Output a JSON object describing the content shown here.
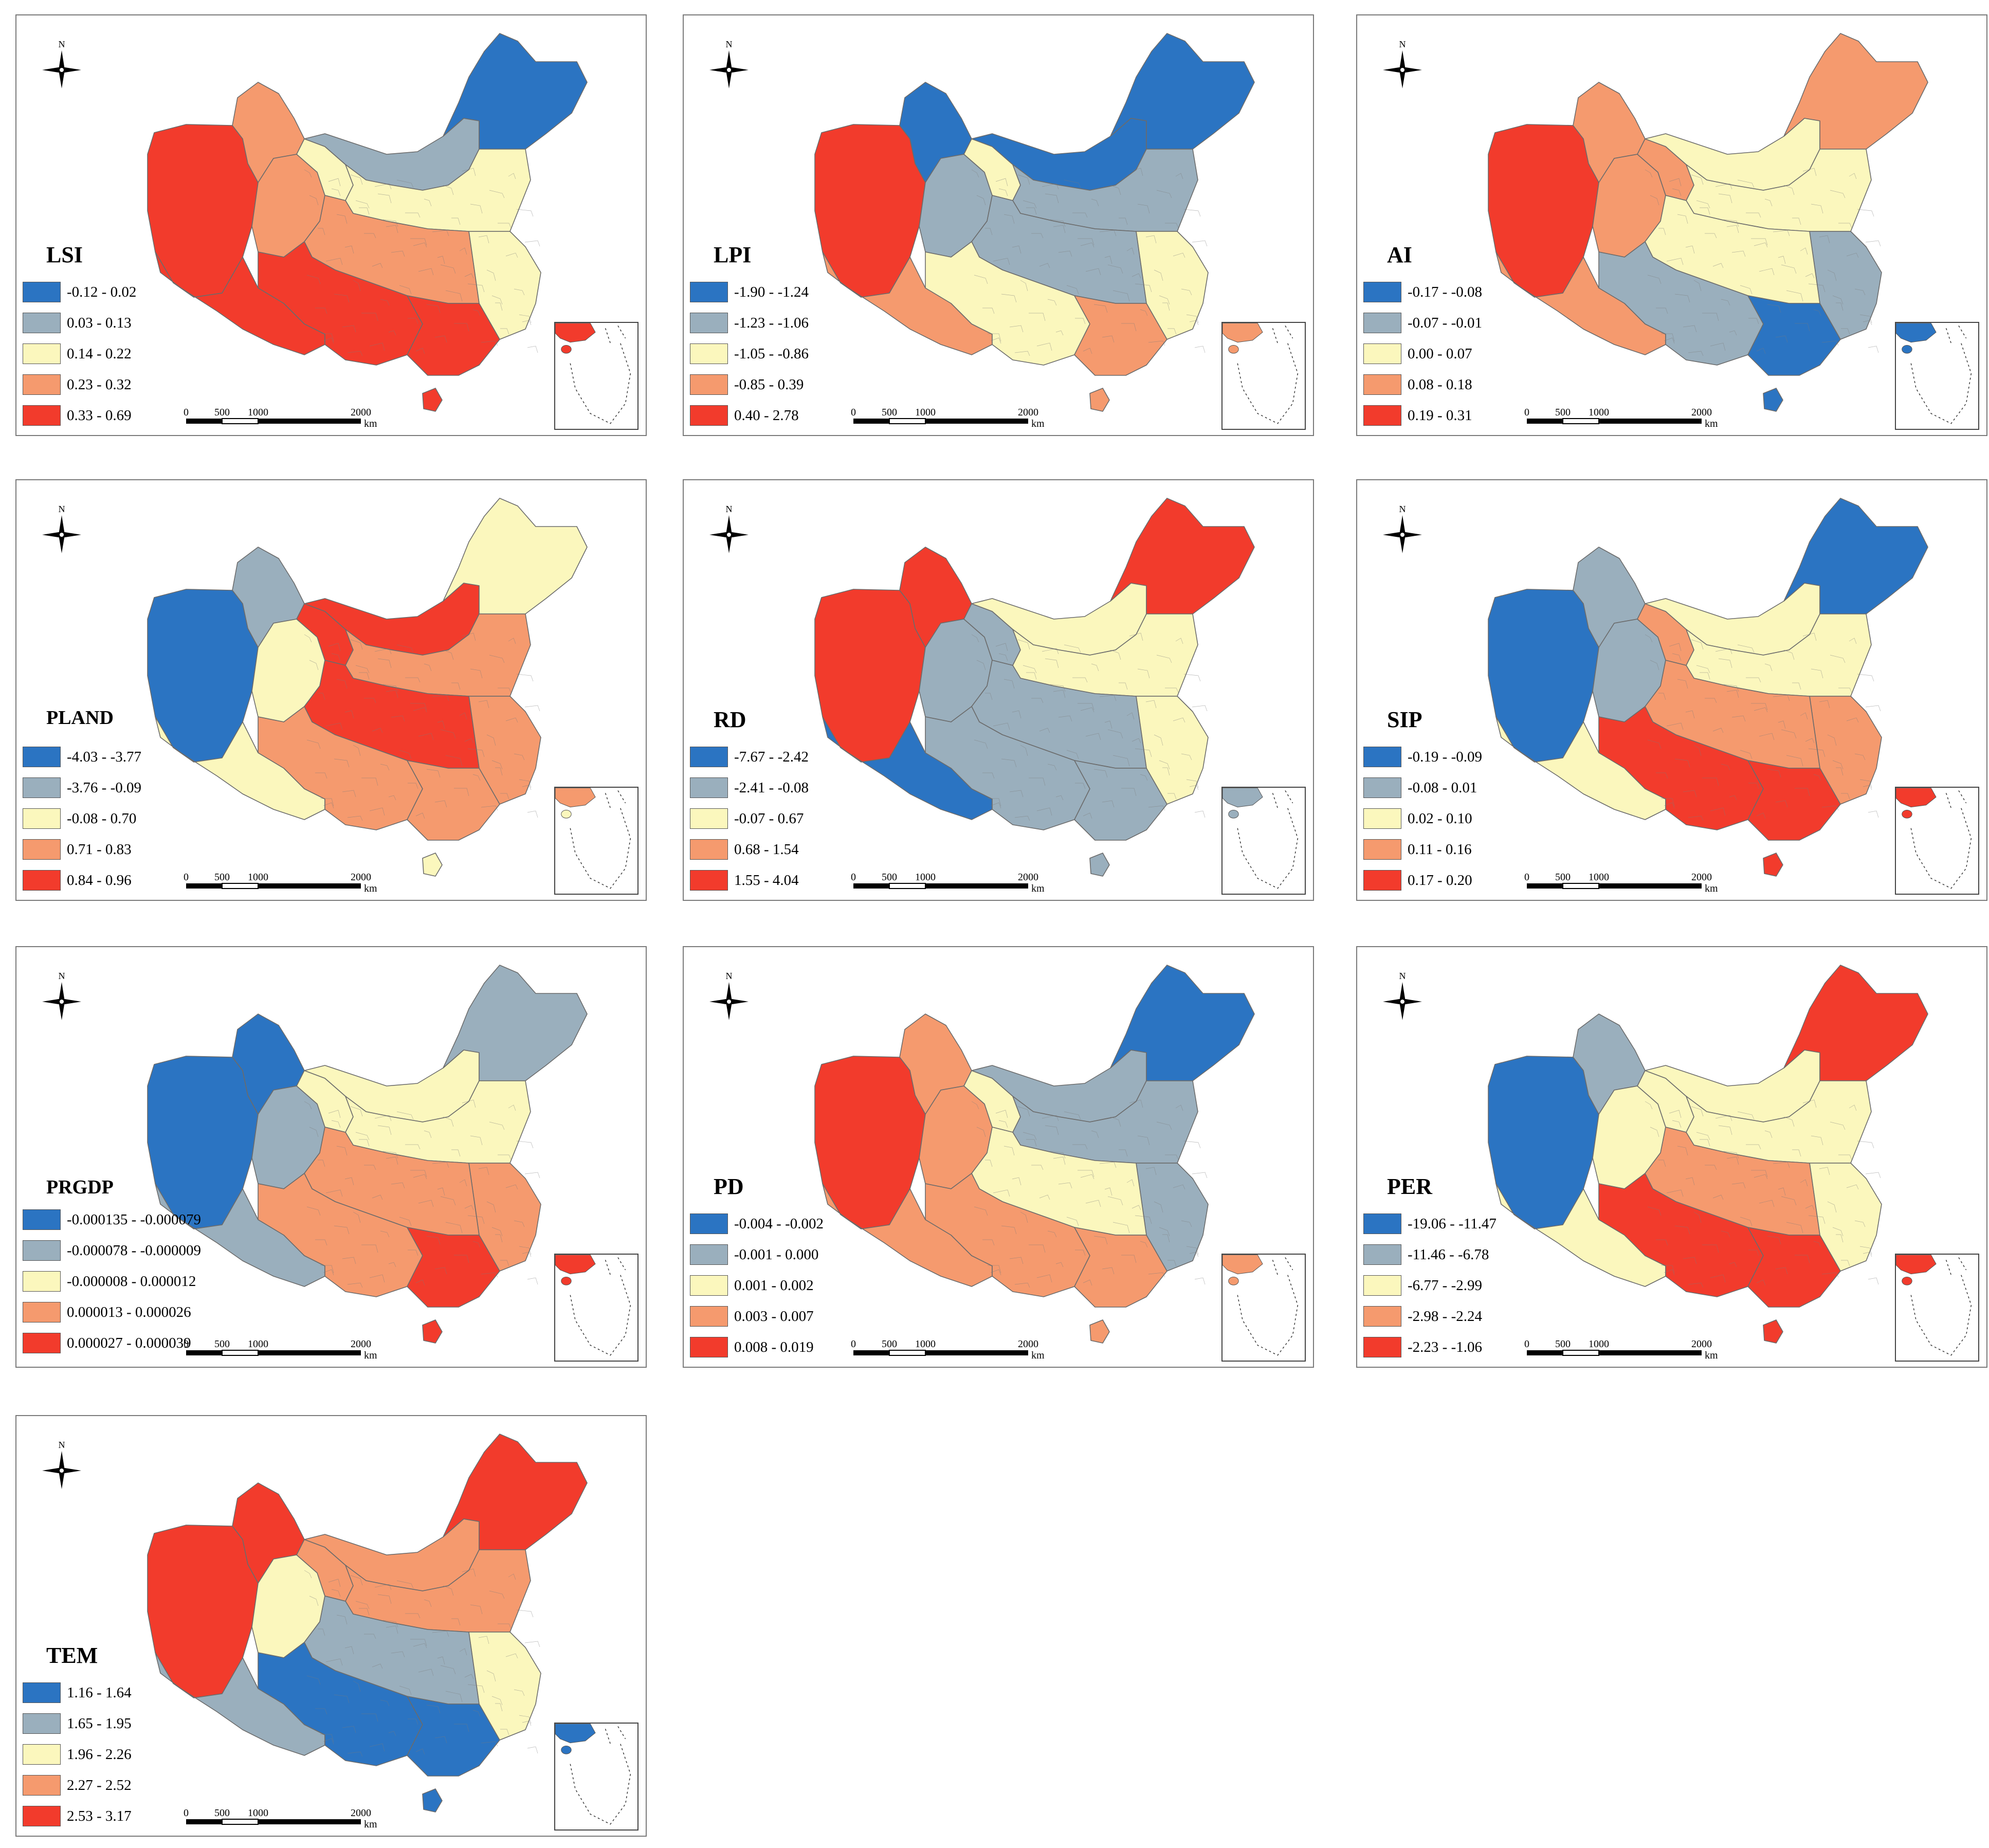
{
  "colors": {
    "class1": "#2b74c2",
    "class2": "#9aafbd",
    "class3": "#fbf7bd",
    "class4": "#f59a6e",
    "class5": "#f23b2c",
    "boundary": "#6b6b6b"
  },
  "compass": {
    "label": "N"
  },
  "scale_bar": {
    "ticks": [
      "0",
      "500",
      "1000",
      "2000"
    ],
    "unit": "km"
  },
  "maps": [
    {
      "title": "LSI",
      "legend": [
        "-0.12 - 0.02",
        "0.03 - 0.13",
        "0.14 - 0.22",
        "0.23 - 0.32",
        "0.33 - 0.69"
      ],
      "zones": {
        "xw": 5,
        "tibet": 5,
        "qinghai": 4,
        "gansu": 3,
        "nwgansu": 4,
        "inner_mongolia": 2,
        "northeast": 1,
        "north_china": 3,
        "central": 4,
        "southwest": 5,
        "south": 5,
        "east": 3,
        "hainan": 5
      }
    },
    {
      "title": "LPI",
      "legend": [
        "-1.90 - -1.24",
        "-1.23 - -1.06",
        "-1.05 - -0.86",
        "-0.85 - 0.39",
        "0.40 - 2.78"
      ],
      "zones": {
        "xw": 5,
        "tibet": 4,
        "qinghai": 2,
        "gansu": 3,
        "nwgansu": 1,
        "inner_mongolia": 1,
        "northeast": 1,
        "north_china": 2,
        "central": 2,
        "southwest": 3,
        "south": 4,
        "east": 3,
        "hainan": 4
      }
    },
    {
      "title": "AI",
      "legend": [
        "-0.17 - -0.08",
        "-0.07 - -0.01",
        "0.00 - 0.07",
        "0.08 - 0.18",
        "0.19 - 0.31"
      ],
      "zones": {
        "xw": 5,
        "tibet": 4,
        "qinghai": 4,
        "gansu": 4,
        "nwgansu": 4,
        "inner_mongolia": 3,
        "northeast": 4,
        "north_china": 3,
        "central": 3,
        "southwest": 2,
        "south": 1,
        "east": 2,
        "hainan": 1
      }
    },
    {
      "title": "PLAND",
      "legend": [
        "-4.03 - -3.77",
        "-3.76 - -0.09",
        "-0.08 - 0.70",
        "0.71 - 0.83",
        "0.84 - 0.96"
      ],
      "zones": {
        "xw": 1,
        "tibet": 3,
        "qinghai": 3,
        "gansu": 5,
        "nwgansu": 2,
        "inner_mongolia": 5,
        "northeast": 3,
        "north_china": 4,
        "central": 5,
        "southwest": 4,
        "south": 4,
        "east": 4,
        "hainan": 3
      }
    },
    {
      "title": "RD",
      "legend": [
        "-7.67 - -2.42",
        "-2.41 - -0.08",
        "-0.07 - 0.67",
        "0.68 - 1.54",
        "1.55 - 4.04"
      ],
      "zones": {
        "xw": 5,
        "tibet": 1,
        "qinghai": 2,
        "gansu": 2,
        "nwgansu": 5,
        "inner_mongolia": 3,
        "northeast": 5,
        "north_china": 3,
        "central": 2,
        "southwest": 2,
        "south": 2,
        "east": 3,
        "hainan": 2
      }
    },
    {
      "title": "SIP",
      "legend": [
        "-0.19 - -0.09",
        "-0.08 - 0.01",
        "0.02 - 0.10",
        "0.11 - 0.16",
        "0.17 - 0.20"
      ],
      "zones": {
        "xw": 1,
        "tibet": 3,
        "qinghai": 2,
        "gansu": 4,
        "nwgansu": 2,
        "inner_mongolia": 3,
        "northeast": 1,
        "north_china": 3,
        "central": 4,
        "southwest": 5,
        "south": 5,
        "east": 4,
        "hainan": 5
      }
    },
    {
      "title": "PRGDP",
      "legend": [
        "-0.000135 - -0.000079",
        "-0.000078 - -0.000009",
        "-0.000008 - 0.000012",
        "0.000013 - 0.000026",
        "0.000027 - 0.000039"
      ],
      "zones": {
        "xw": 1,
        "tibet": 2,
        "qinghai": 2,
        "gansu": 3,
        "nwgansu": 1,
        "inner_mongolia": 3,
        "northeast": 2,
        "north_china": 3,
        "central": 4,
        "southwest": 4,
        "south": 5,
        "east": 4,
        "hainan": 5
      }
    },
    {
      "title": "PD",
      "legend": [
        "-0.004 - -0.002",
        "-0.001 - 0.000",
        "0.001 - 0.002",
        "0.003 - 0.007",
        "0.008 - 0.019"
      ],
      "zones": {
        "xw": 5,
        "tibet": 4,
        "qinghai": 4,
        "gansu": 3,
        "nwgansu": 4,
        "inner_mongolia": 2,
        "northeast": 1,
        "north_china": 2,
        "central": 3,
        "southwest": 4,
        "south": 4,
        "east": 2,
        "hainan": 4
      }
    },
    {
      "title": "PER",
      "legend": [
        "-19.06 - -11.47",
        "-11.46 - -6.78",
        "-6.77 - -2.99",
        "-2.98 - -2.24",
        "-2.23 - -1.06"
      ],
      "zones": {
        "xw": 1,
        "tibet": 3,
        "qinghai": 3,
        "gansu": 3,
        "nwgansu": 2,
        "inner_mongolia": 3,
        "northeast": 5,
        "north_china": 3,
        "central": 4,
        "southwest": 5,
        "south": 5,
        "east": 3,
        "hainan": 5
      }
    },
    {
      "title": "TEM",
      "legend": [
        "1.16 - 1.64",
        "1.65 - 1.95",
        "1.96 - 2.26",
        "2.27 - 2.52",
        "2.53 - 3.17"
      ],
      "zones": {
        "xw": 5,
        "tibet": 2,
        "qinghai": 3,
        "gansu": 4,
        "nwgansu": 5,
        "inner_mongolia": 4,
        "northeast": 5,
        "north_china": 4,
        "central": 2,
        "southwest": 1,
        "south": 1,
        "east": 3,
        "hainan": 1
      }
    }
  ]
}
